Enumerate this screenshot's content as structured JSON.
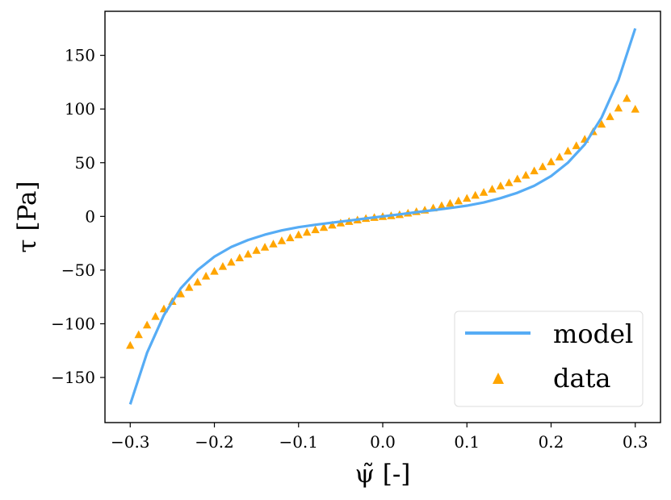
{
  "chart_data": {
    "type": "scatter",
    "title": "",
    "xlabel": "ψ̃ [-]",
    "ylabel": "τ [Pa]",
    "xlim": [
      -0.33,
      0.33
    ],
    "ylim": [
      -192,
      191
    ],
    "x_ticks": [
      -0.3,
      -0.2,
      -0.1,
      0.0,
      0.1,
      0.2,
      0.3
    ],
    "x_tick_labels": [
      "−0.3",
      "−0.2",
      "−0.1",
      "0.0",
      "0.1",
      "0.2",
      "0.3"
    ],
    "y_ticks": [
      -150,
      -100,
      -50,
      0,
      50,
      100,
      150
    ],
    "y_tick_labels": [
      "−150",
      "−100",
      "−50",
      "0",
      "50",
      "100",
      "150"
    ],
    "grid": false,
    "legend_position": "bottom-right",
    "series": [
      {
        "name": "model",
        "kind": "line",
        "color": "#56acf5",
        "x": [
          -0.3,
          -0.28,
          -0.26,
          -0.24,
          -0.22,
          -0.2,
          -0.18,
          -0.16,
          -0.14,
          -0.12,
          -0.1,
          -0.08,
          -0.06,
          -0.04,
          -0.02,
          0.0,
          0.02,
          0.04,
          0.06,
          0.08,
          0.1,
          0.12,
          0.14,
          0.16,
          0.18,
          0.2,
          0.22,
          0.24,
          0.26,
          0.28,
          0.3
        ],
        "y": [
          -175,
          -127,
          -92,
          -67,
          -50,
          -37.5,
          -28.5,
          -22,
          -17,
          -13,
          -10,
          -7.8,
          -5.8,
          -3.9,
          -1.9,
          0,
          1.9,
          3.9,
          5.8,
          7.8,
          10,
          13,
          17,
          22,
          28.5,
          37.5,
          50,
          67,
          92,
          127,
          175
        ]
      },
      {
        "name": "data",
        "kind": "scatter",
        "marker": "triangle",
        "color": "#ffa500",
        "x": [
          -0.3,
          -0.29,
          -0.28,
          -0.27,
          -0.26,
          -0.25,
          -0.24,
          -0.23,
          -0.22,
          -0.21,
          -0.2,
          -0.19,
          -0.18,
          -0.17,
          -0.16,
          -0.15,
          -0.14,
          -0.13,
          -0.12,
          -0.11,
          -0.1,
          -0.09,
          -0.08,
          -0.07,
          -0.06,
          -0.05,
          -0.04,
          -0.03,
          -0.02,
          -0.01,
          0.0,
          0.01,
          0.02,
          0.03,
          0.04,
          0.05,
          0.06,
          0.07,
          0.08,
          0.09,
          0.1,
          0.11,
          0.12,
          0.13,
          0.14,
          0.15,
          0.16,
          0.17,
          0.18,
          0.19,
          0.2,
          0.21,
          0.22,
          0.23,
          0.24,
          0.25,
          0.26,
          0.27,
          0.28,
          0.29,
          0.3
        ],
        "y": [
          -120,
          -110,
          -101,
          -93,
          -86,
          -79,
          -72,
          -66,
          -61,
          -55.5,
          -51,
          -46.5,
          -42.5,
          -38.5,
          -35,
          -31.5,
          -28.5,
          -25.5,
          -22.5,
          -19.8,
          -17,
          -14.6,
          -12.3,
          -10.1,
          -8,
          -6,
          -4.6,
          -3.2,
          -1.8,
          -0.8,
          0,
          0.8,
          1.8,
          3.2,
          4.6,
          6,
          8,
          10.1,
          12.3,
          14.6,
          17,
          19.8,
          22.5,
          25.5,
          28.5,
          31.5,
          35,
          38.5,
          42.5,
          46.5,
          51,
          55.5,
          61,
          66,
          72,
          79,
          86,
          93,
          101,
          110,
          100
        ]
      }
    ]
  }
}
